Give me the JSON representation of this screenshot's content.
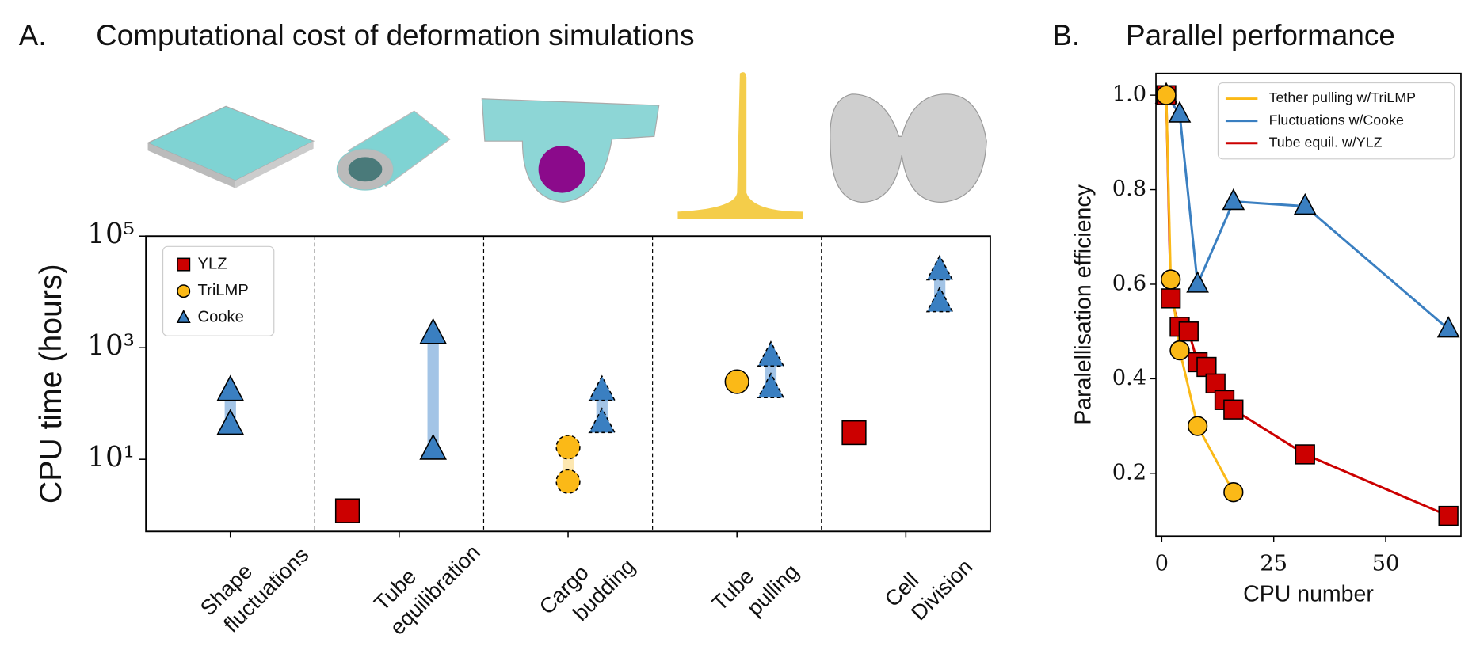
{
  "chart_data": [
    {
      "type": "scatter",
      "panel": "A.",
      "title": "Computational cost of deformation simulations",
      "ylabel": "CPU time (hours)",
      "log_scale": true,
      "categories": [
        [
          "Shape",
          "fluctuations"
        ],
        [
          "Tube",
          "equilibration"
        ],
        [
          "Cargo",
          "budding"
        ],
        [
          "Tube",
          "pulling"
        ],
        [
          "Cell",
          "Division"
        ]
      ],
      "ylim": [
        0.51,
        100000
      ],
      "yticks": [
        {
          "value": 10,
          "label": "10¹"
        },
        {
          "value": 1000,
          "label": "10³"
        },
        {
          "value": 100000,
          "label": "10⁵"
        }
      ],
      "legend": "upper left",
      "series": [
        {
          "name": "YLZ",
          "color": "#cc0000",
          "marker": "square",
          "values": [
            null,
            [
              1.2
            ],
            null,
            null,
            [
              30
            ]
          ],
          "dashed": [
            false,
            false,
            false,
            false,
            false
          ]
        },
        {
          "name": "TriLMP",
          "color": "#fbb917",
          "marker": "circle",
          "range_color": "#fde7b0",
          "values": [
            null,
            null,
            [
              4,
              16.5
            ],
            [
              246
            ],
            null
          ],
          "dashed": [
            false,
            false,
            true,
            false,
            false
          ]
        },
        {
          "name": "Cooke",
          "color": "#3a7fc1",
          "marker": "triangle",
          "range_color": "#a3c4e6",
          "values": [
            [
              42,
              170
            ],
            [
              15,
              1780
            ],
            [
              45,
              170
            ],
            [
              190,
              700
            ],
            [
              6600,
              24500
            ]
          ],
          "dashed": [
            false,
            false,
            true,
            true,
            true
          ]
        }
      ]
    },
    {
      "type": "line",
      "panel": "B.",
      "title": "Parallel performance",
      "xlabel": "CPU number",
      "ylabel": "Paralellisation efficiency",
      "xlim": [
        -1.3,
        66.8
      ],
      "ylim": [
        0.067,
        1.046
      ],
      "xticks": [
        0,
        25,
        50
      ],
      "yticks": [
        0.2,
        0.4,
        0.6,
        0.8,
        {
          "value": 1,
          "label": "1.0"
        }
      ],
      "legend": "upper right",
      "series": [
        {
          "name": "Tether pulling w/TriLMP",
          "color": "#fbb917",
          "marker": "circle",
          "x": [
            1,
            2,
            4,
            8,
            16
          ],
          "values": [
            1.0,
            0.61,
            0.46,
            0.3,
            0.16
          ]
        },
        {
          "name": "Fluctuations w/Cooke",
          "color": "#3a7fc1",
          "marker": "triangle",
          "x": [
            1,
            4,
            8,
            16,
            32,
            64
          ],
          "values": [
            1.0,
            0.96,
            0.6,
            0.775,
            0.765,
            0.505
          ]
        },
        {
          "name": "Tube equil. w/YLZ",
          "color": "#cc0000",
          "marker": "square",
          "x": [
            1,
            2,
            4,
            6,
            8,
            10,
            12,
            14,
            16,
            32,
            64
          ],
          "values": [
            1.0,
            0.57,
            0.51,
            0.5,
            0.435,
            0.425,
            0.39,
            0.355,
            0.335,
            0.24,
            0.11
          ]
        }
      ]
    }
  ]
}
